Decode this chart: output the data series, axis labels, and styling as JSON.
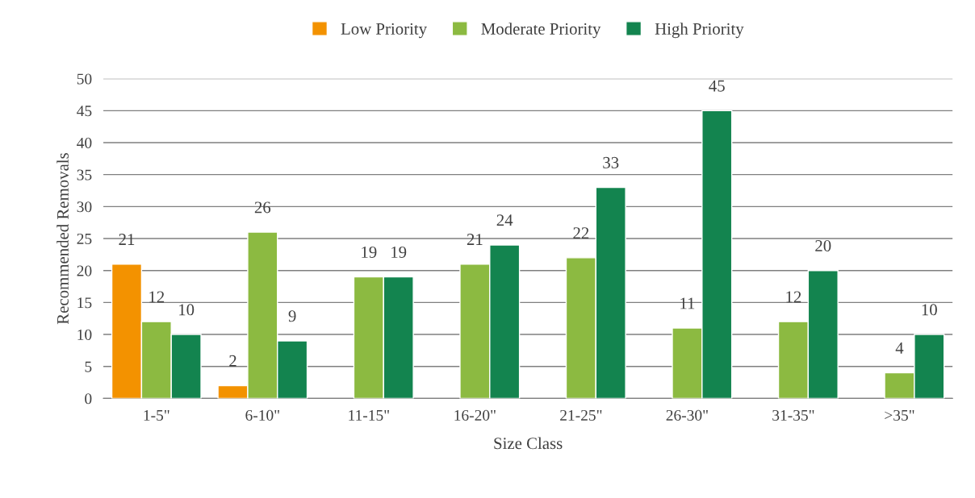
{
  "chart_data": {
    "type": "bar",
    "xlabel": "Size Class",
    "ylabel": "Recommended Removals",
    "categories": [
      "1-5\"",
      "6-10\"",
      "11-15\"",
      "16-20\"",
      "21-25\"",
      "26-30\"",
      "31-35\"",
      ">35\""
    ],
    "series": [
      {
        "name": "Low Priority",
        "color": "#f39200",
        "values": [
          21,
          2,
          null,
          null,
          null,
          null,
          null,
          null
        ]
      },
      {
        "name": "Moderate Priority",
        "color": "#8cba41",
        "values": [
          12,
          26,
          19,
          21,
          22,
          11,
          12,
          4
        ]
      },
      {
        "name": "High Priority",
        "color": "#13844f",
        "values": [
          10,
          9,
          19,
          24,
          33,
          45,
          20,
          10
        ]
      }
    ],
    "ylim": [
      0,
      50
    ],
    "yticks": [
      0,
      5,
      10,
      15,
      20,
      25,
      30,
      35,
      40,
      45,
      50
    ],
    "grid": "y",
    "legend": "top",
    "data_labels": true
  }
}
